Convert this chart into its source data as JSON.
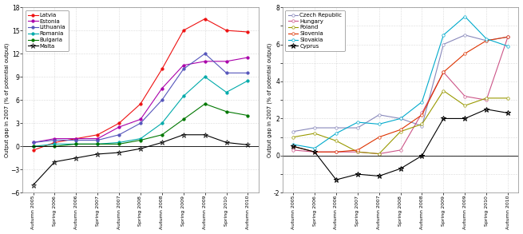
{
  "x_labels": [
    "Autumn 2005",
    "Spring 2006",
    "Autumn 2006",
    "Spring 2007",
    "Autumn 2007",
    "Spring 2008",
    "Autumn 2008",
    "Spring 2009",
    "Autumn 2009",
    "Spring 2010",
    "Autumn 2010"
  ],
  "left_panel": {
    "ylabel": "Output gap in 2007 (% of potential output)",
    "ylim": [
      -6,
      18
    ],
    "yticks": [
      -6,
      -3,
      0,
      3,
      6,
      9,
      12,
      15,
      18
    ],
    "series": {
      "Latvia": {
        "color": "#ee1111",
        "marker": "o",
        "data": [
          -0.5,
          0.5,
          1.0,
          1.5,
          3.0,
          5.5,
          10.0,
          15.0,
          16.5,
          15.0,
          14.8
        ]
      },
      "Estonia": {
        "color": "#aa00aa",
        "marker": "o",
        "data": [
          0.5,
          1.0,
          1.0,
          1.0,
          2.5,
          3.5,
          7.5,
          10.5,
          11.0,
          11.0,
          11.5
        ]
      },
      "Lithuania": {
        "color": "#5555bb",
        "marker": "o",
        "data": [
          0.5,
          0.8,
          0.8,
          0.8,
          1.5,
          3.0,
          6.0,
          10.0,
          12.0,
          9.5,
          9.5
        ]
      },
      "Romania": {
        "color": "#00aaaa",
        "marker": "o",
        "data": [
          0.0,
          0.3,
          0.3,
          0.3,
          0.5,
          1.0,
          3.0,
          6.5,
          9.0,
          7.0,
          8.5
        ]
      },
      "Bulgaria": {
        "color": "#007700",
        "marker": "o",
        "data": [
          0.0,
          0.0,
          0.3,
          0.3,
          0.3,
          0.8,
          1.5,
          3.5,
          5.5,
          4.5,
          4.0
        ]
      },
      "Malta": {
        "color": "#000000",
        "marker": "*",
        "data": [
          -5.0,
          -2.0,
          -1.5,
          -1.0,
          -0.8,
          -0.3,
          0.5,
          1.5,
          1.5,
          0.5,
          0.2
        ]
      }
    }
  },
  "right_panel": {
    "ylabel": "Output gap in 2007 (% of potential output)",
    "ylim": [
      -2,
      8
    ],
    "yticks": [
      -2,
      -1,
      0,
      1,
      2,
      3,
      4,
      5,
      6,
      7,
      8
    ],
    "yticklabels": [
      "-2",
      "",
      "0",
      "",
      "2",
      "",
      "4",
      "",
      "6",
      "",
      "8"
    ],
    "series": {
      "Czech Republic": {
        "color": "#8888bb",
        "marker": "o",
        "data": [
          1.3,
          1.5,
          1.5,
          1.5,
          2.2,
          2.0,
          1.6,
          6.0,
          6.5,
          6.2,
          6.4
        ]
      },
      "Hungary": {
        "color": "#cc5588",
        "marker": "o",
        "data": [
          0.3,
          0.2,
          0.2,
          0.2,
          0.1,
          0.3,
          2.3,
          4.5,
          3.2,
          3.0,
          6.4
        ]
      },
      "Poland": {
        "color": "#999900",
        "marker": "o",
        "data": [
          1.0,
          1.2,
          0.8,
          0.2,
          0.1,
          1.3,
          1.7,
          3.5,
          2.7,
          3.1,
          3.1
        ]
      },
      "Slovenia": {
        "color": "#dd3300",
        "marker": "o",
        "data": [
          0.5,
          0.2,
          0.2,
          0.3,
          1.0,
          1.4,
          2.2,
          4.5,
          5.5,
          6.2,
          6.4
        ]
      },
      "Slovakia": {
        "color": "#00aacc",
        "marker": "o",
        "data": [
          0.6,
          0.4,
          1.2,
          1.8,
          1.7,
          2.0,
          2.9,
          6.5,
          7.5,
          6.3,
          5.9
        ]
      },
      "Cyprus": {
        "color": "#000000",
        "marker": "*",
        "data": [
          0.5,
          0.2,
          -1.3,
          -1.0,
          -1.1,
          -0.7,
          0.0,
          2.0,
          2.0,
          2.5,
          2.3
        ]
      }
    }
  },
  "background_color": "#ffffff",
  "grid_color": "#bbbbbb"
}
